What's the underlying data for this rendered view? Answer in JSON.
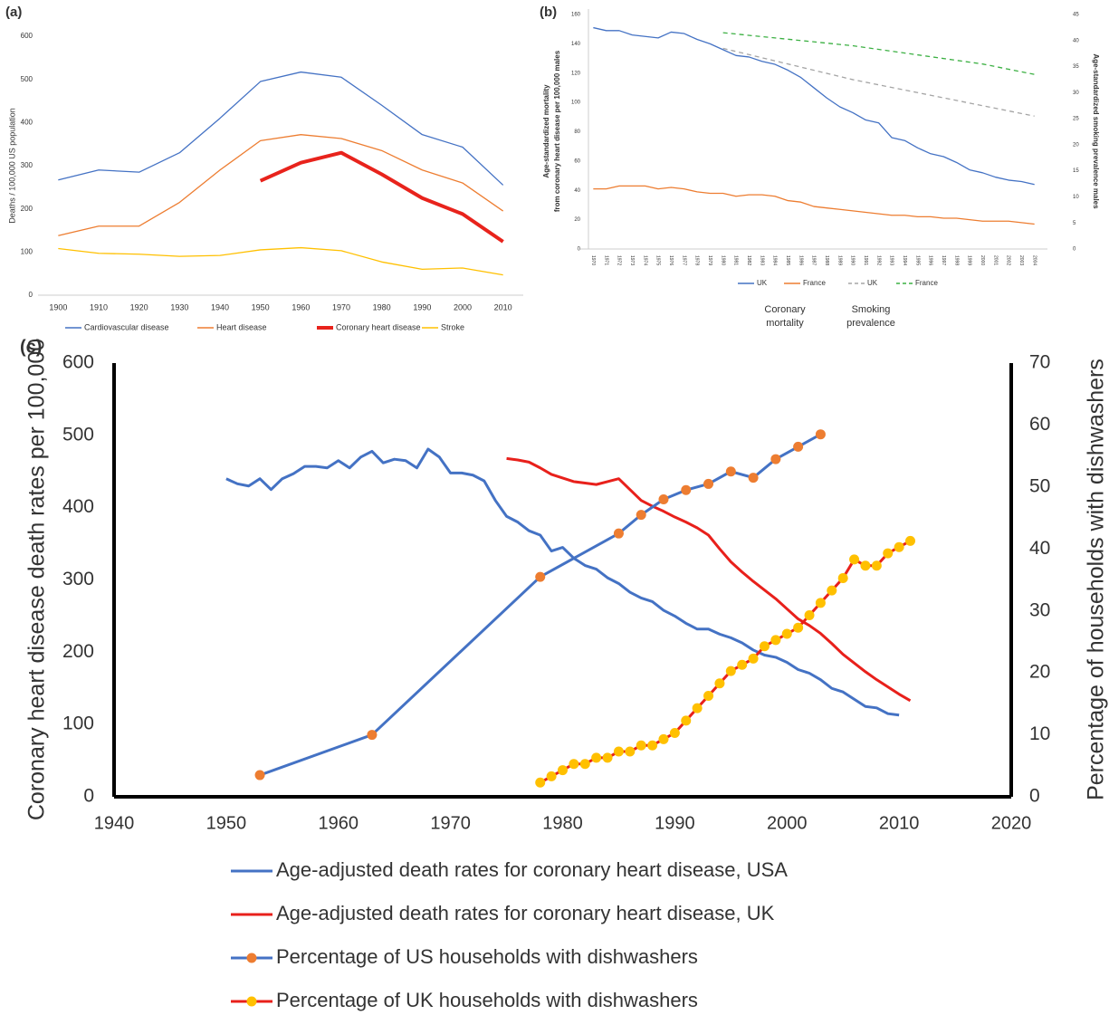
{
  "chart_data": [
    {
      "type": "line",
      "label": "(a)",
      "ylabel": "Deaths / 100,000 US population",
      "x": [
        1900,
        1910,
        1920,
        1930,
        1940,
        1950,
        1960,
        1970,
        1980,
        1990,
        2000,
        2010
      ],
      "xlim": [
        1895,
        2015
      ],
      "xticks": [
        1900,
        1910,
        1920,
        1930,
        1940,
        1950,
        1960,
        1970,
        1980,
        1990,
        2000,
        2010
      ],
      "ylim": [
        0,
        600
      ],
      "yticks": [
        0,
        100,
        200,
        300,
        400,
        500,
        600
      ],
      "series": [
        {
          "name": "Cardiovascular disease",
          "color": "#4472c4",
          "values": [
            267,
            290,
            285,
            330,
            410,
            495,
            517,
            505,
            440,
            372,
            343,
            255
          ]
        },
        {
          "name": "Heart disease",
          "color": "#ed7d31",
          "values": [
            138,
            160,
            160,
            215,
            290,
            358,
            372,
            363,
            335,
            290,
            260,
            195
          ]
        },
        {
          "name": "Coronary heart disease",
          "color": "#e8231c",
          "emphasis": true,
          "values": [
            null,
            null,
            null,
            null,
            null,
            265,
            307,
            330,
            280,
            225,
            188,
            124
          ]
        },
        {
          "name": "Stroke",
          "color": "#ffc000",
          "values": [
            108,
            97,
            95,
            90,
            92,
            105,
            110,
            103,
            77,
            60,
            63,
            47
          ]
        }
      ]
    },
    {
      "type": "line",
      "label": "(b)",
      "ylabel": [
        "Age-standardized mortality",
        "from coronary heart disease per 100,000 males"
      ],
      "y2label": "Age-standardized smoking prevalence males",
      "xlim": [
        1969,
        2005
      ],
      "xticks": [
        1970,
        1971,
        1972,
        1973,
        1974,
        1975,
        1976,
        1977,
        1978,
        1979,
        1980,
        1981,
        1982,
        1983,
        1984,
        1985,
        1986,
        1987,
        1988,
        1989,
        1990,
        1991,
        1992,
        1993,
        1994,
        1995,
        1996,
        1997,
        1998,
        1999,
        2000,
        2001,
        2002,
        2003,
        2004
      ],
      "ylim": [
        0,
        160
      ],
      "yticks": [
        0,
        20,
        40,
        60,
        80,
        100,
        120,
        140,
        160
      ],
      "y2lim": [
        0,
        45
      ],
      "y2ticks": [
        0,
        5,
        10,
        15,
        20,
        25,
        30,
        35,
        40,
        45
      ],
      "legend_groups": [
        [
          "Coronary",
          "mortality"
        ],
        [
          "Smoking",
          "prevalence"
        ]
      ],
      "series": [
        {
          "name": "UK",
          "color": "#4472c4",
          "x": [
            1970,
            1971,
            1972,
            1973,
            1974,
            1975,
            1976,
            1977,
            1978,
            1979,
            1980,
            1981,
            1982,
            1983,
            1984,
            1985,
            1986,
            1987,
            1988,
            1989,
            1990,
            1991,
            1992,
            1993,
            1994,
            1995,
            1996,
            1997,
            1998,
            1999,
            2000,
            2001,
            2002,
            2003,
            2004
          ],
          "values": [
            151,
            149,
            149,
            146,
            145,
            144,
            148,
            147,
            143,
            140,
            136,
            132,
            131,
            128,
            126,
            122,
            117,
            110,
            103,
            97,
            93,
            88,
            86,
            76,
            74,
            69,
            65,
            63,
            59,
            54,
            52,
            49,
            47,
            46,
            44
          ]
        },
        {
          "name": "France",
          "color": "#ed7d31",
          "x": [
            1970,
            1971,
            1972,
            1973,
            1974,
            1975,
            1976,
            1977,
            1978,
            1979,
            1980,
            1981,
            1982,
            1983,
            1984,
            1985,
            1986,
            1987,
            1988,
            1989,
            1990,
            1991,
            1992,
            1993,
            1994,
            1995,
            1996,
            1997,
            1998,
            1999,
            2000,
            2001,
            2002,
            2003,
            2004
          ],
          "values": [
            41,
            41,
            43,
            43,
            43,
            41,
            42,
            41,
            39,
            38,
            38,
            36,
            37,
            37,
            36,
            33,
            32,
            29,
            28,
            27,
            26,
            25,
            24,
            23,
            23,
            22,
            22,
            21,
            21,
            20,
            19,
            19,
            19,
            18,
            17
          ]
        },
        {
          "name": "UK",
          "color": "#a5a5a5",
          "linestyle": "dashed",
          "axis": "y2",
          "x": [
            1980,
            1990,
            2000,
            2004
          ],
          "values": [
            38.5,
            32.5,
            27.5,
            25.5
          ]
        },
        {
          "name": "France",
          "color": "#3cb043",
          "linestyle": "dashed",
          "axis": "y2",
          "x": [
            1980,
            1990,
            2000,
            2004
          ],
          "values": [
            41.5,
            39,
            35.5,
            33.5
          ]
        }
      ]
    },
    {
      "type": "line",
      "label": "(c)",
      "ylabel": "Coronary heart disease death rates per 100,000",
      "y2label": "Percentage of households  with dishwashers",
      "xlim": [
        1940,
        2020
      ],
      "xticks": [
        1940,
        1950,
        1960,
        1970,
        1980,
        1990,
        2000,
        2010,
        2020
      ],
      "ylim": [
        0,
        600
      ],
      "yticks": [
        0,
        100,
        200,
        300,
        400,
        500,
        600
      ],
      "y2lim": [
        0,
        70
      ],
      "y2ticks": [
        0,
        10,
        20,
        30,
        40,
        50,
        60,
        70
      ],
      "series": [
        {
          "name": "Age-adjusted death rates for coronary heart disease, USA",
          "color": "#4472c4",
          "x": [
            1950,
            1951,
            1952,
            1953,
            1954,
            1955,
            1956,
            1957,
            1958,
            1959,
            1960,
            1961,
            1962,
            1963,
            1964,
            1965,
            1966,
            1967,
            1968,
            1969,
            1970,
            1971,
            1972,
            1973,
            1974,
            1975,
            1976,
            1977,
            1978,
            1979,
            1980,
            1981,
            1982,
            1983,
            1984,
            1985,
            1986,
            1987,
            1988,
            1989,
            1990,
            1991,
            1992,
            1993,
            1994,
            1995,
            1996,
            1997,
            1998,
            1999,
            2000,
            2001,
            2002,
            2003,
            2004,
            2005,
            2006,
            2007,
            2008,
            2009,
            2010
          ],
          "values": [
            440,
            433,
            430,
            440,
            425,
            440,
            447,
            457,
            457,
            455,
            465,
            455,
            470,
            478,
            462,
            467,
            465,
            455,
            481,
            470,
            448,
            448,
            445,
            437,
            410,
            388,
            380,
            368,
            362,
            340,
            345,
            330,
            320,
            315,
            303,
            295,
            283,
            275,
            270,
            258,
            250,
            240,
            232,
            232,
            225,
            220,
            213,
            203,
            196,
            193,
            186,
            176,
            171,
            162,
            150,
            145,
            135,
            125,
            123,
            115,
            113
          ]
        },
        {
          "name": "Age-adjusted death rates for coronary heart disease, UK",
          "color": "#e8201b",
          "x": [
            1975,
            1976,
            1977,
            1978,
            1979,
            1980,
            1981,
            1982,
            1983,
            1984,
            1985,
            1986,
            1987,
            1988,
            1989,
            1990,
            1991,
            1992,
            1993,
            1994,
            1995,
            1996,
            1997,
            1998,
            1999,
            2000,
            2001,
            2002,
            2003,
            2004,
            2005,
            2006,
            2007,
            2008,
            2009,
            2010,
            2011
          ],
          "values": [
            468,
            466,
            463,
            455,
            446,
            441,
            436,
            434,
            432,
            436,
            440,
            425,
            410,
            402,
            395,
            387,
            380,
            372,
            362,
            343,
            325,
            311,
            298,
            286,
            274,
            260,
            246,
            237,
            226,
            212,
            197,
            185,
            173,
            162,
            152,
            142,
            133
          ]
        },
        {
          "name": "Percentage of US households  with dishwashers",
          "color": "#4472c4",
          "marker_color": "#ed7d31",
          "axis": "y2",
          "x": [
            1953,
            1963,
            1978,
            1985,
            1987,
            1989,
            1991,
            1993,
            1995,
            1997,
            1999,
            2001,
            2003
          ],
          "values": [
            3.5,
            10,
            35.5,
            42.5,
            45.5,
            48,
            49.5,
            50.5,
            52.5,
            51.5,
            54.5,
            56.5,
            58.5
          ]
        },
        {
          "name": "Percentage of UK households  with dishwashers",
          "color": "#e8201b",
          "marker_color": "#ffc000",
          "axis": "y2",
          "x": [
            1978,
            1979,
            1980,
            1981,
            1982,
            1983,
            1984,
            1985,
            1986,
            1987,
            1988,
            1989,
            1990,
            1991,
            1992,
            1993,
            1994,
            1995,
            1996,
            1997,
            1998,
            1999,
            2000,
            2001,
            2002,
            2003,
            2004,
            2005,
            2006,
            2007,
            2008,
            2009,
            2010,
            2011
          ],
          "values": [
            2.3,
            3.3,
            4.3,
            5.3,
            5.3,
            6.3,
            6.3,
            7.3,
            7.3,
            8.3,
            8.3,
            9.3,
            10.3,
            12.3,
            14.3,
            16.3,
            18.3,
            20.3,
            21.3,
            22.3,
            24.3,
            25.3,
            26.3,
            27.3,
            29.3,
            31.3,
            33.3,
            35.3,
            38.3,
            37.3,
            37.3,
            39.3,
            40.3,
            41.3
          ]
        }
      ]
    }
  ]
}
